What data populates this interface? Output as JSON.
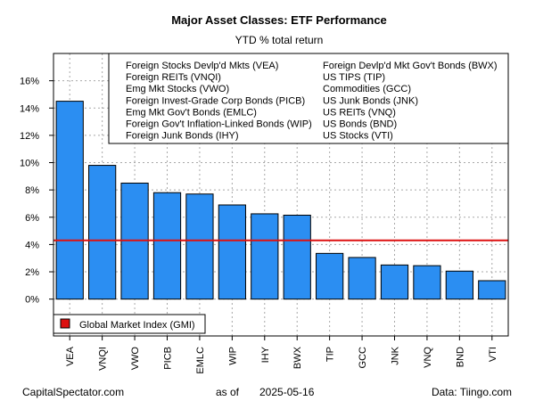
{
  "chart_data": {
    "type": "bar",
    "title": "Major Asset Classes: ETF Performance",
    "subtitle": "YTD % total return",
    "categories": [
      "VEA",
      "VNQI",
      "VWO",
      "PICB",
      "EMLC",
      "WIP",
      "IHY",
      "BWX",
      "TIP",
      "GCC",
      "JNK",
      "VNQ",
      "BND",
      "VTI"
    ],
    "values": [
      14.5,
      9.8,
      8.5,
      7.8,
      7.7,
      6.9,
      6.25,
      6.15,
      3.35,
      3.05,
      2.5,
      2.45,
      2.05,
      1.35
    ],
    "y_ticks": [
      "0%",
      "2%",
      "4%",
      "6%",
      "8%",
      "10%",
      "12%",
      "14%",
      "16%"
    ],
    "ylim": [
      -2.7,
      18.0
    ],
    "grid": true,
    "bar_color": "#2b8ef2",
    "reference_line": {
      "label": "Global Market Index (GMI)",
      "value": 4.3,
      "color": "#dd1111"
    },
    "legend_entries": [
      "Foreign Stocks Devlp'd Mkts (VEA)",
      "Foreign REITs (VNQI)",
      "Emg Mkt Stocks (VWO)",
      "Foreign Invest-Grade Corp Bonds (PICB)",
      "Emg Mkt Gov't Bonds (EMLC)",
      "Foreign Gov't Inflation-Linked Bonds (WIP)",
      "Foreign Junk Bonds (IHY)",
      "Foreign Devlp'd Mkt Gov't Bonds (BWX)",
      "US TIPS (TIP)",
      "Commodities (GCC)",
      "US Junk Bonds (JNK)",
      "US REITs (VNQ)",
      "US Bonds (BND)",
      "US Stocks (VTI)"
    ],
    "legend_placement": "top-right"
  },
  "footer": {
    "left": "CapitalSpectator.com",
    "as_of_label": "as of",
    "date": "2025-05-16",
    "right": "Data: Tiingo.com"
  }
}
